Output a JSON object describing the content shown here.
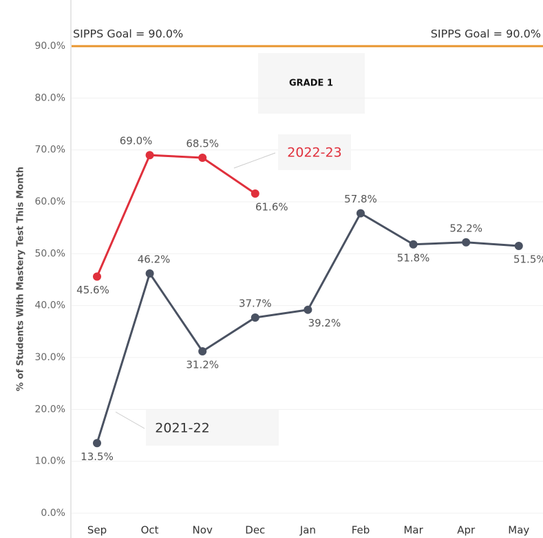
{
  "chart_data": {
    "type": "line",
    "subtitle": "GRADE 1",
    "y_label": "% of Students With Mastery Test This Month",
    "categories": [
      "Sep",
      "Oct",
      "Nov",
      "Dec",
      "Jan",
      "Feb",
      "Mar",
      "Apr",
      "May"
    ],
    "series": [
      {
        "name": "2021-22",
        "color": "#4a5262",
        "values": [
          13.5,
          46.2,
          31.2,
          37.7,
          39.2,
          57.8,
          51.8,
          52.2,
          51.5
        ],
        "value_labels": [
          "13.5%",
          "46.2%",
          "31.2%",
          "37.7%",
          "39.2%",
          "57.8%",
          "51.8%",
          "52.2%",
          "51.5%"
        ]
      },
      {
        "name": "2022-23",
        "color": "#e0303c",
        "values": [
          45.6,
          69.0,
          68.5,
          61.6,
          null,
          null,
          null,
          null,
          null
        ],
        "value_labels": [
          "45.6%",
          "69.0%",
          "68.5%",
          "61.6%",
          null,
          null,
          null,
          null,
          null
        ]
      }
    ],
    "goal": {
      "value": 90,
      "label": "SIPPS Goal = 90.0%",
      "color": "#e8952e"
    },
    "ylim": [
      0,
      90
    ],
    "yticks": [
      {
        "value": 0,
        "label": "0.0%"
      },
      {
        "value": 10,
        "label": "10.0%"
      },
      {
        "value": 20,
        "label": "20.0%"
      },
      {
        "value": 30,
        "label": "30.0%"
      },
      {
        "value": 40,
        "label": "40.0%"
      },
      {
        "value": 50,
        "label": "50.0%"
      },
      {
        "value": 60,
        "label": "60.0%"
      },
      {
        "value": 70,
        "label": "70.0%"
      },
      {
        "value": 80,
        "label": "80.0%"
      },
      {
        "value": 90,
        "label": "90.0%"
      }
    ],
    "grid": true
  }
}
